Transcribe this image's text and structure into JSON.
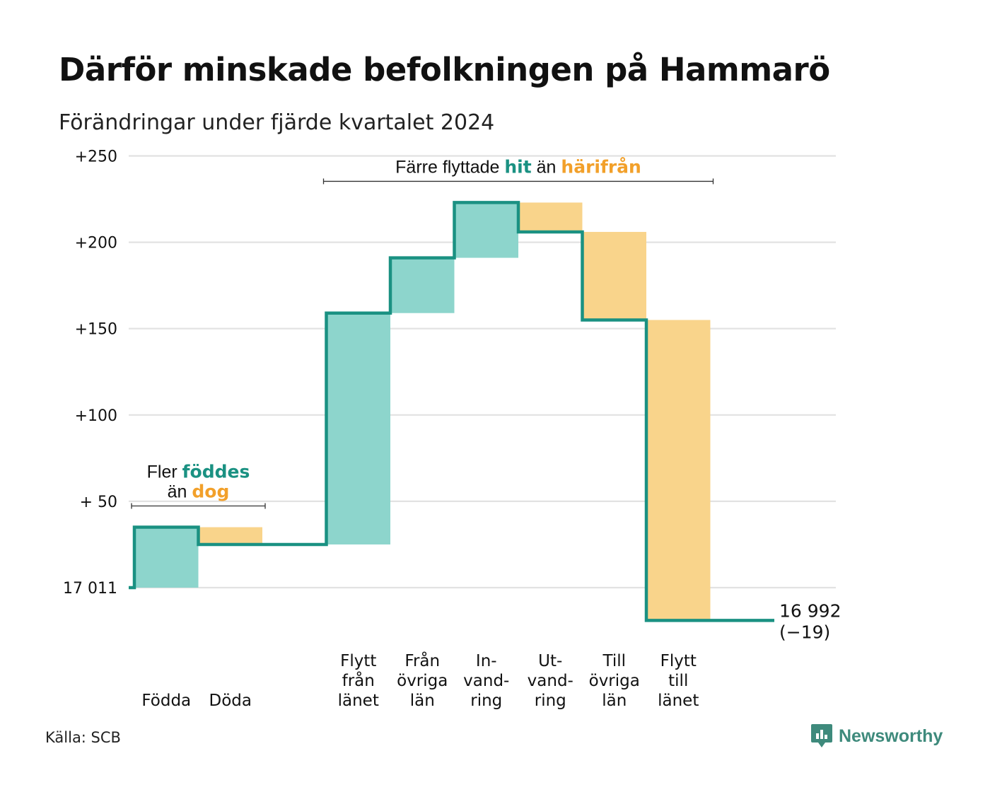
{
  "title": "Därför minskade befolkningen på Hammarö",
  "subtitle": "Förändringar under fjärde kvartalet 2024",
  "source": "Källa: SCB",
  "brand": "Newsworthy",
  "colors": {
    "increase": "#8dd5cc",
    "decrease": "#f9d48b",
    "line": "#1a9182",
    "increase_text": "#1a9182",
    "decrease_text": "#f2a02a",
    "grid": "#e2e2e2"
  },
  "chart_data": {
    "type": "waterfall",
    "start_value": 17011,
    "end_label": "16 992",
    "end_change_label": "(−19)",
    "y_tick_labels": [
      {
        "value": 0,
        "label": "17 011"
      },
      {
        "value": 50,
        "label": "+ 50"
      },
      {
        "value": 100,
        "label": "+100"
      },
      {
        "value": 150,
        "label": "+150"
      },
      {
        "value": 200,
        "label": "+200"
      },
      {
        "value": 250,
        "label": "+250"
      }
    ],
    "ylim": [
      -25,
      250
    ],
    "grid": true,
    "steps": [
      {
        "label": [
          "Födda"
        ],
        "change": 35
      },
      {
        "label": [
          "Döda"
        ],
        "change": -10
      },
      {
        "label": [],
        "change": 0
      },
      {
        "label": [
          "Flytt",
          "från",
          "länet"
        ],
        "change": 134
      },
      {
        "label": [
          "Från",
          "övriga",
          "län"
        ],
        "change": 32
      },
      {
        "label": [
          "In-",
          "vand-",
          "ring"
        ],
        "change": 32
      },
      {
        "label": [
          "Ut-",
          "vand-",
          "ring"
        ],
        "change": -17
      },
      {
        "label": [
          "Till",
          "övriga",
          "län"
        ],
        "change": -51
      },
      {
        "label": [
          "Flytt",
          "till",
          "länet"
        ],
        "change": -174
      },
      {
        "label": [],
        "change": 0
      }
    ],
    "annotations": [
      {
        "lines": [
          [
            {
              "text": "Fler ",
              "role": "plain"
            },
            {
              "text": "föddes",
              "role": "increase"
            }
          ],
          [
            {
              "text": "än ",
              "role": "plain"
            },
            {
              "text": "dog",
              "role": "decrease"
            }
          ]
        ],
        "from_step": 0,
        "to_step": 1
      },
      {
        "lines": [
          [
            {
              "text": "Färre flyttade ",
              "role": "plain"
            },
            {
              "text": "hit",
              "role": "increase"
            },
            {
              "text": " än ",
              "role": "plain"
            },
            {
              "text": "härifrån",
              "role": "decrease"
            }
          ]
        ],
        "from_step": 3,
        "to_step": 8
      }
    ]
  }
}
